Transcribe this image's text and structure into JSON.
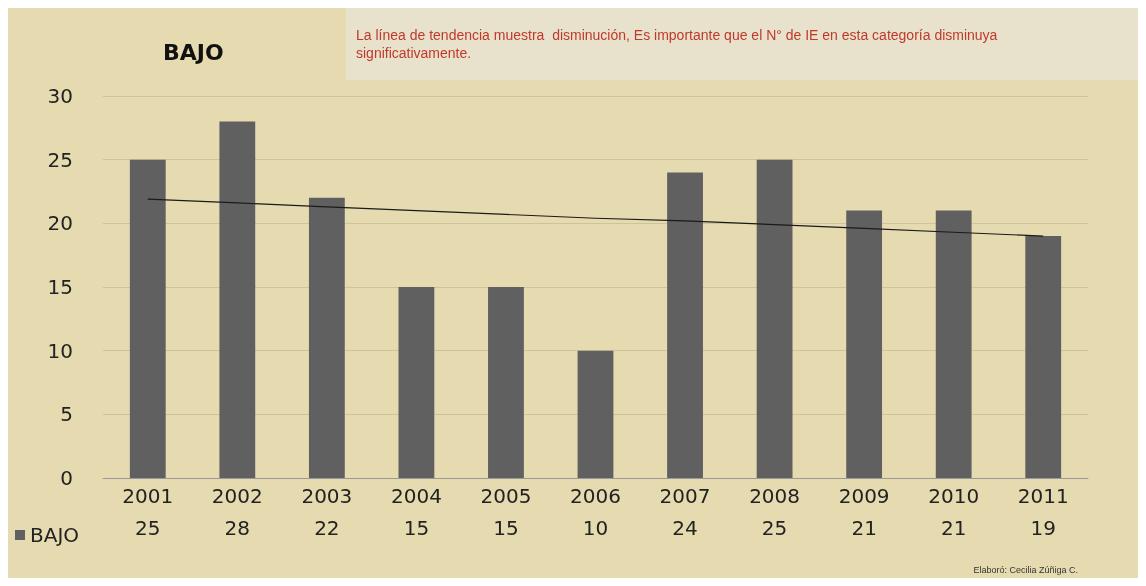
{
  "chart_data": {
    "type": "bar",
    "title": "BAJO",
    "categories": [
      "2001",
      "2002",
      "2003",
      "2004",
      "2005",
      "2006",
      "2007",
      "2008",
      "2009",
      "2010",
      "2011"
    ],
    "series": [
      {
        "name": "BAJO",
        "color": "#606060",
        "values": [
          25,
          28,
          22,
          15,
          15,
          10,
          24,
          25,
          21,
          21,
          19
        ],
        "value_labels": [
          "25",
          "28",
          "22",
          "15",
          "15",
          "10",
          "24",
          "25",
          "21",
          "21",
          "19"
        ]
      },
      {
        "type": "line",
        "color": "#1a1a1a",
        "values": [
          21.9,
          21.6,
          21.3,
          21.0,
          20.7,
          20.4,
          20.2,
          19.9,
          19.6,
          19.3,
          19.0
        ]
      }
    ],
    "ylim": [
      0,
      30
    ],
    "yticks": [
      0,
      5,
      10,
      15,
      20,
      25,
      30
    ],
    "grid": "y",
    "legend": "bottom left",
    "marker": "none",
    "annotations": [
      "La línea de tendencia muestra  disminución, Es importante que el N° de IE en esta categoría disminuya significativamente.",
      "Elaboró: Cecilia Zúñiga C."
    ]
  }
}
